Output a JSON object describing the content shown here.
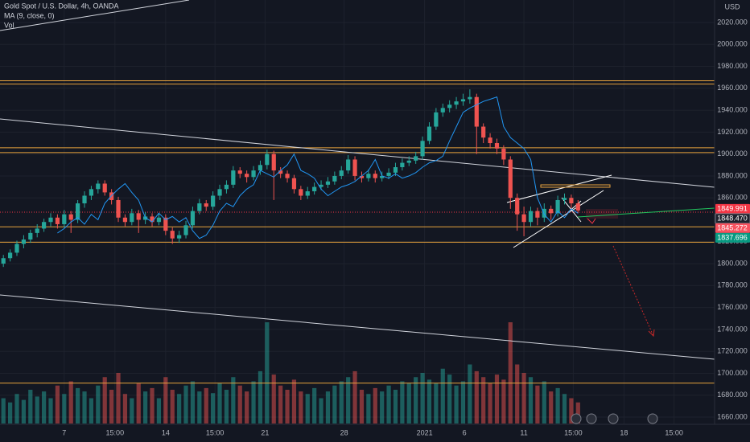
{
  "header": {
    "symbol": "Gold Spot / U.S. Dollar, 4h, OANDA",
    "indicator": "MA (9, close, 0)",
    "volume_label": "Vol",
    "currency": "USD"
  },
  "chart_data": {
    "type": "candlestick",
    "up_color": "#26a69a",
    "down_color": "#ef5350",
    "ma_color": "#2196f3",
    "level_color": "#e8a33d",
    "xlim": [
      -0.5,
      105.2
    ],
    "ylim": [
      1659.3,
      2040.5
    ],
    "xticks": [
      {
        "value": 9,
        "label": "7"
      },
      {
        "value": 16.5,
        "label": "15:00"
      },
      {
        "value": 24,
        "label": "14"
      },
      {
        "value": 31.3,
        "label": "15:00"
      },
      {
        "value": 38.7,
        "label": "21"
      },
      {
        "value": 50.4,
        "label": "28"
      },
      {
        "value": 62.3,
        "label": "2021"
      },
      {
        "value": 68.2,
        "label": "6"
      },
      {
        "value": 77,
        "label": "11"
      },
      {
        "value": 84.3,
        "label": "15:00"
      },
      {
        "value": 91.8,
        "label": "18"
      },
      {
        "value": 99.2,
        "label": "15:00"
      }
    ],
    "yticks": [
      {
        "value": 1660,
        "label": "1660.000"
      },
      {
        "value": 1680,
        "label": "1680.000"
      },
      {
        "value": 1700,
        "label": "1700.000"
      },
      {
        "value": 1720,
        "label": "1720.000"
      },
      {
        "value": 1740,
        "label": "1740.000"
      },
      {
        "value": 1760,
        "label": "1760.000"
      },
      {
        "value": 1780,
        "label": "1780.000"
      },
      {
        "value": 1800,
        "label": "1800.000"
      },
      {
        "value": 1820,
        "label": "1820.000"
      },
      {
        "value": 1860,
        "label": "1860.000"
      },
      {
        "value": 1880,
        "label": "1880.000"
      },
      {
        "value": 1900,
        "label": "1900.000"
      },
      {
        "value": 1920,
        "label": "1920.000"
      },
      {
        "value": 1940,
        "label": "1940.000"
      },
      {
        "value": 1960,
        "label": "1960.000"
      },
      {
        "value": 1980,
        "label": "1980.000"
      },
      {
        "value": 2000,
        "label": "2000.000"
      },
      {
        "value": 2020,
        "label": "2020.000"
      }
    ],
    "grid": true,
    "levels": [
      1966.8,
      1963.8,
      1905.7,
      1901.3,
      1833.6,
      1819.6,
      1691
    ],
    "price_tags": [
      {
        "value": 1849.991,
        "label": "1849.991",
        "color": "#f23645"
      },
      {
        "value": 1848.47,
        "label": "1848.470",
        "color": "#1e222d"
      },
      {
        "value": 1845.272,
        "label": "1845.272",
        "color": "#f7525f"
      },
      {
        "value": 1837.696,
        "label": "1837.696",
        "color": "#089981"
      }
    ],
    "candles": [
      [
        1800,
        1808,
        1797,
        1805
      ],
      [
        1805,
        1813,
        1802,
        1810
      ],
      [
        1810,
        1821,
        1807,
        1818
      ],
      [
        1818,
        1826,
        1814,
        1822
      ],
      [
        1822,
        1831,
        1819,
        1828
      ],
      [
        1828,
        1836,
        1824,
        1832
      ],
      [
        1832,
        1841,
        1829,
        1838
      ],
      [
        1838,
        1846,
        1834,
        1842
      ],
      [
        1842,
        1845,
        1832,
        1836
      ],
      [
        1836,
        1849,
        1833,
        1845
      ],
      [
        1845,
        1848,
        1828,
        1840
      ],
      [
        1840,
        1858,
        1837,
        1855
      ],
      [
        1855,
        1866,
        1851,
        1862
      ],
      [
        1862,
        1871,
        1858,
        1868
      ],
      [
        1868,
        1876,
        1864,
        1873
      ],
      [
        1873,
        1876,
        1862,
        1865
      ],
      [
        1865,
        1868,
        1854,
        1858
      ],
      [
        1858,
        1861,
        1838,
        1842
      ],
      [
        1842,
        1845,
        1834,
        1838
      ],
      [
        1838,
        1850,
        1835,
        1846
      ],
      [
        1846,
        1849,
        1828,
        1840
      ],
      [
        1840,
        1847,
        1836,
        1843
      ],
      [
        1843,
        1846,
        1834,
        1838
      ],
      [
        1838,
        1846,
        1835,
        1842
      ],
      [
        1842,
        1845,
        1826,
        1830
      ],
      [
        1830,
        1833,
        1818,
        1823
      ],
      [
        1823,
        1830,
        1819,
        1826
      ],
      [
        1826,
        1839,
        1823,
        1835
      ],
      [
        1835,
        1852,
        1832,
        1848
      ],
      [
        1848,
        1859,
        1845,
        1855
      ],
      [
        1855,
        1858,
        1848,
        1852
      ],
      [
        1852,
        1866,
        1849,
        1862
      ],
      [
        1862,
        1872,
        1858,
        1868
      ],
      [
        1868,
        1876,
        1864,
        1872
      ],
      [
        1872,
        1889,
        1869,
        1885
      ],
      [
        1885,
        1888,
        1878,
        1882
      ],
      [
        1882,
        1885,
        1874,
        1879
      ],
      [
        1879,
        1889,
        1876,
        1885
      ],
      [
        1885,
        1894,
        1881,
        1890
      ],
      [
        1890,
        1904,
        1886,
        1900
      ],
      [
        1900,
        1903,
        1858,
        1885
      ],
      [
        1885,
        1888,
        1878,
        1882
      ],
      [
        1882,
        1885,
        1874,
        1878
      ],
      [
        1878,
        1881,
        1864,
        1868
      ],
      [
        1868,
        1871,
        1858,
        1862
      ],
      [
        1862,
        1870,
        1859,
        1866
      ],
      [
        1866,
        1874,
        1863,
        1870
      ],
      [
        1870,
        1876,
        1867,
        1872
      ],
      [
        1872,
        1879,
        1869,
        1875
      ],
      [
        1875,
        1884,
        1872,
        1880
      ],
      [
        1880,
        1889,
        1877,
        1885
      ],
      [
        1885,
        1899,
        1882,
        1895
      ],
      [
        1895,
        1898,
        1876,
        1880
      ],
      [
        1880,
        1884,
        1874,
        1878
      ],
      [
        1878,
        1886,
        1875,
        1882
      ],
      [
        1882,
        1885,
        1874,
        1878
      ],
      [
        1878,
        1884,
        1875,
        1880
      ],
      [
        1880,
        1887,
        1877,
        1883
      ],
      [
        1883,
        1892,
        1880,
        1888
      ],
      [
        1888,
        1896,
        1885,
        1892
      ],
      [
        1892,
        1898,
        1889,
        1894
      ],
      [
        1894,
        1902,
        1891,
        1898
      ],
      [
        1898,
        1916,
        1895,
        1912
      ],
      [
        1912,
        1929,
        1909,
        1925
      ],
      [
        1925,
        1942,
        1922,
        1938
      ],
      [
        1938,
        1946,
        1934,
        1942
      ],
      [
        1942,
        1949,
        1938,
        1945
      ],
      [
        1945,
        1952,
        1941,
        1948
      ],
      [
        1948,
        1955,
        1944,
        1950
      ],
      [
        1950,
        1959,
        1946,
        1952
      ],
      [
        1952,
        1955,
        1900,
        1925
      ],
      [
        1925,
        1928,
        1910,
        1915
      ],
      [
        1915,
        1919,
        1905,
        1910
      ],
      [
        1910,
        1914,
        1900,
        1905
      ],
      [
        1905,
        1908,
        1890,
        1895
      ],
      [
        1895,
        1898,
        1850,
        1860
      ],
      [
        1860,
        1864,
        1830,
        1845
      ],
      [
        1845,
        1852,
        1825,
        1838
      ],
      [
        1838,
        1852,
        1834,
        1848
      ],
      [
        1848,
        1851,
        1835,
        1842
      ],
      [
        1842,
        1855,
        1838,
        1850
      ],
      [
        1850,
        1853,
        1840,
        1846
      ],
      [
        1846,
        1862,
        1843,
        1858
      ],
      [
        1858,
        1864,
        1854,
        1860
      ],
      [
        1860,
        1863,
        1850,
        1855
      ],
      [
        1855,
        1858,
        1846,
        1848.47
      ]
    ],
    "ma": [
      null,
      null,
      null,
      null,
      null,
      null,
      null,
      null,
      1828,
      1832,
      1838,
      1842,
      1836,
      1845,
      1840,
      1855,
      1862,
      1868,
      1873,
      1865,
      1858,
      1842,
      1838,
      1846,
      1840,
      1843,
      1838,
      1842,
      1830,
      1823,
      1826,
      1835,
      1848,
      1855,
      1852,
      1862,
      1868,
      1872,
      1885,
      1882,
      1879,
      1885,
      1890,
      1900,
      1885,
      1882,
      1878,
      1868,
      1862,
      1866,
      1870,
      1872,
      1875,
      1880,
      1885,
      1895,
      1880,
      1878,
      1882,
      1878,
      1880,
      1883,
      1888,
      1892,
      1894,
      1898,
      1912,
      1925,
      1938,
      1942,
      1945,
      1948,
      1950,
      1952,
      1925,
      1915,
      1910,
      1905,
      1895,
      1860,
      1845,
      1838,
      1848,
      1842,
      1850,
      1846
    ],
    "volume": [
      30,
      25,
      35,
      28,
      40,
      32,
      38,
      30,
      45,
      35,
      50,
      42,
      38,
      30,
      45,
      55,
      40,
      60,
      35,
      30,
      48,
      38,
      42,
      30,
      55,
      40,
      35,
      45,
      50,
      38,
      42,
      36,
      48,
      40,
      55,
      45,
      38,
      50,
      62,
      120,
      58,
      45,
      40,
      52,
      38,
      35,
      42,
      30,
      38,
      45,
      50,
      55,
      62,
      40,
      35,
      42,
      38,
      45,
      40,
      50,
      48,
      55,
      60,
      52,
      48,
      65,
      58,
      45,
      50,
      70,
      62,
      55,
      48,
      58,
      52,
      120,
      70,
      60,
      55,
      45,
      50,
      38,
      42,
      35,
      30,
      25
    ]
  }
}
